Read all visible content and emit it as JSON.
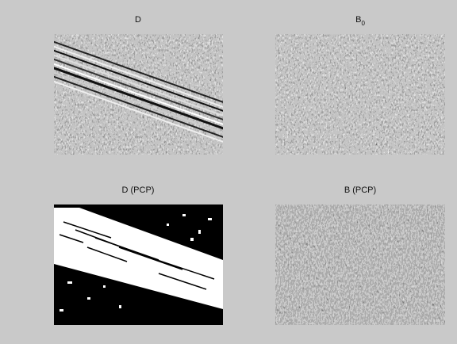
{
  "panels": [
    {
      "title": "D"
    },
    {
      "title": "B",
      "title_subscript": "0"
    },
    {
      "title": "D (PCP)"
    },
    {
      "title": "B (PCP)"
    }
  ]
}
